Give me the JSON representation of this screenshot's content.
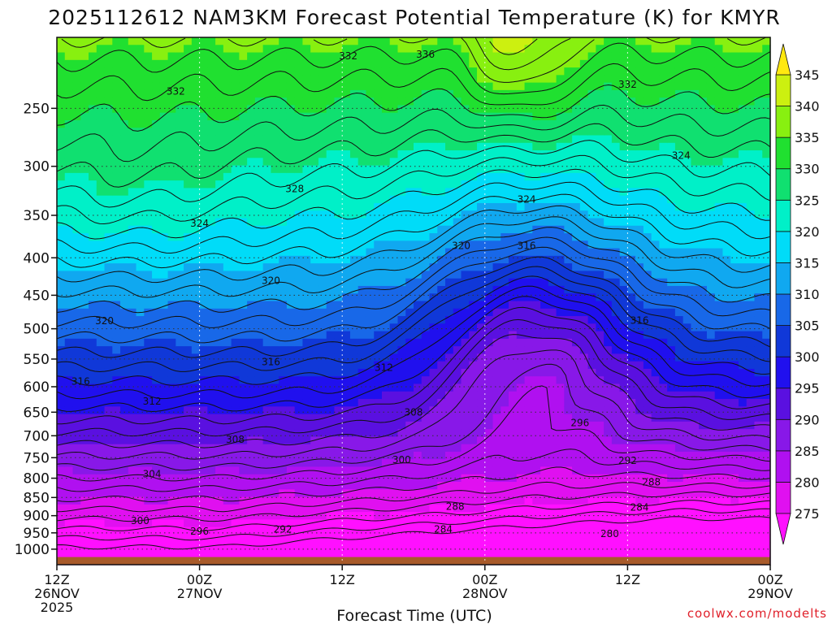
{
  "chart_data": {
    "type": "heatmap",
    "title": "2025112612 NAM3KM Forecast Potential Temperature (K) for KMYR",
    "xlabel": "Forecast Time (UTC)",
    "ylabel": "",
    "credit": "coolwx.com/modelts",
    "x_ticks": [
      {
        "hour": 0,
        "lines": [
          "12Z",
          "26NOV",
          "2025"
        ]
      },
      {
        "hour": 12,
        "lines": [
          "00Z",
          "27NOV"
        ]
      },
      {
        "hour": 24,
        "lines": [
          "12Z"
        ]
      },
      {
        "hour": 36,
        "lines": [
          "00Z",
          "28NOV"
        ]
      },
      {
        "hour": 48,
        "lines": [
          "12Z"
        ]
      },
      {
        "hour": 60,
        "lines": [
          "00Z",
          "29NOV"
        ]
      }
    ],
    "xlim": [
      0,
      60
    ],
    "y_scale": "log-pressure",
    "ylim_hPa": [
      1050,
      200
    ],
    "y_ticks": [
      250,
      300,
      350,
      400,
      450,
      500,
      550,
      600,
      650,
      700,
      750,
      800,
      850,
      900,
      950,
      1000
    ],
    "colorbar": {
      "label_values": [
        345,
        340,
        335,
        330,
        325,
        320,
        315,
        310,
        305,
        300,
        295,
        290,
        285,
        280,
        275
      ],
      "bins": [
        {
          "min": 270,
          "max": 275,
          "color": "#ff10ff"
        },
        {
          "min": 275,
          "max": 280,
          "color": "#e010f0"
        },
        {
          "min": 280,
          "max": 285,
          "color": "#b010f0"
        },
        {
          "min": 285,
          "max": 290,
          "color": "#8818e8"
        },
        {
          "min": 290,
          "max": 295,
          "color": "#5a10e0"
        },
        {
          "min": 295,
          "max": 300,
          "color": "#2010ee"
        },
        {
          "min": 300,
          "max": 305,
          "color": "#1038d8"
        },
        {
          "min": 305,
          "max": 310,
          "color": "#1868e8"
        },
        {
          "min": 310,
          "max": 315,
          "color": "#10a8f0"
        },
        {
          "min": 315,
          "max": 320,
          "color": "#00dcf8"
        },
        {
          "min": 320,
          "max": 325,
          "color": "#00f0c8"
        },
        {
          "min": 325,
          "max": 330,
          "color": "#10e070"
        },
        {
          "min": 330,
          "max": 335,
          "color": "#20e030"
        },
        {
          "min": 335,
          "max": 340,
          "color": "#88f010"
        },
        {
          "min": 340,
          "max": 345,
          "color": "#ccf010"
        },
        {
          "min": 345,
          "max": 350,
          "color": "#ffe810"
        }
      ]
    },
    "contour_interval_K": 2,
    "contour_labels": [
      {
        "hour": 24.5,
        "p": 212,
        "value": "332"
      },
      {
        "hour": 31,
        "p": 211,
        "value": "336"
      },
      {
        "hour": 10,
        "p": 237,
        "value": "332"
      },
      {
        "hour": 48,
        "p": 232,
        "value": "332"
      },
      {
        "hour": 52.5,
        "p": 290,
        "value": "324"
      },
      {
        "hour": 20,
        "p": 322,
        "value": "328"
      },
      {
        "hour": 39.5,
        "p": 333,
        "value": "324"
      },
      {
        "hour": 12,
        "p": 359,
        "value": "324"
      },
      {
        "hour": 34,
        "p": 385,
        "value": "320"
      },
      {
        "hour": 39.5,
        "p": 385,
        "value": "316"
      },
      {
        "hour": 18,
        "p": 430,
        "value": "320"
      },
      {
        "hour": 4,
        "p": 488,
        "value": "320"
      },
      {
        "hour": 49,
        "p": 487,
        "value": "316"
      },
      {
        "hour": 18,
        "p": 555,
        "value": "316"
      },
      {
        "hour": 27.5,
        "p": 565,
        "value": "312"
      },
      {
        "hour": 2,
        "p": 590,
        "value": "316"
      },
      {
        "hour": 8,
        "p": 628,
        "value": "312"
      },
      {
        "hour": 30,
        "p": 650,
        "value": "308"
      },
      {
        "hour": 44,
        "p": 672,
        "value": "296"
      },
      {
        "hour": 15,
        "p": 708,
        "value": "308"
      },
      {
        "hour": 29,
        "p": 755,
        "value": "300"
      },
      {
        "hour": 48,
        "p": 757,
        "value": "292"
      },
      {
        "hour": 8,
        "p": 790,
        "value": "304"
      },
      {
        "hour": 50,
        "p": 810,
        "value": "288"
      },
      {
        "hour": 33.5,
        "p": 875,
        "value": "288"
      },
      {
        "hour": 49,
        "p": 877,
        "value": "284"
      },
      {
        "hour": 7,
        "p": 915,
        "value": "300"
      },
      {
        "hour": 19,
        "p": 940,
        "value": "292"
      },
      {
        "hour": 12,
        "p": 945,
        "value": "296"
      },
      {
        "hour": 32.5,
        "p": 940,
        "value": "284"
      },
      {
        "hour": 46.5,
        "p": 953,
        "value": "280"
      }
    ],
    "grid": true,
    "ground_color": "#a85a2a"
  }
}
